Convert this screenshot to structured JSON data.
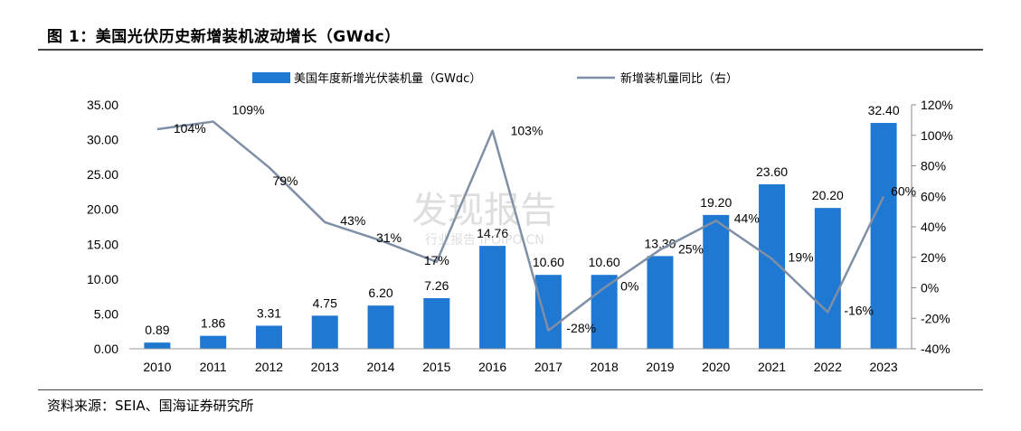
{
  "figure": {
    "title": "图 1：美国光伏历史新增装机波动增长（GWdc）",
    "source": "资料来源：SEIA、国海证券研究所"
  },
  "watermark": {
    "main": "发现报告",
    "sub": "行业报告 IPOIPO.CN"
  },
  "colors": {
    "bar": "#1F78D1",
    "line": "#7F8FA6"
  },
  "chart_data": {
    "type": "bar",
    "categories": [
      "2010",
      "2011",
      "2012",
      "2013",
      "2014",
      "2015",
      "2016",
      "2017",
      "2018",
      "2019",
      "2020",
      "2021",
      "2022",
      "2023"
    ],
    "series": [
      {
        "name": "美国年度新增光伏装机量（GWdc）",
        "type": "bar",
        "axis": "left",
        "values": [
          0.89,
          1.86,
          3.31,
          4.75,
          6.2,
          7.26,
          14.76,
          10.6,
          10.6,
          13.3,
          19.2,
          23.6,
          20.2,
          32.4
        ],
        "labels": [
          "0.89",
          "1.86",
          "3.31",
          "4.75",
          "6.20",
          "7.26",
          "14.76",
          "10.60",
          "10.60",
          "13.30",
          "19.20",
          "23.60",
          "20.20",
          "32.40"
        ]
      },
      {
        "name": "新增装机量同比（右）",
        "type": "line",
        "axis": "right",
        "values": [
          104,
          109,
          79,
          43,
          31,
          17,
          103,
          -28,
          0,
          25,
          44,
          19,
          -16,
          60
        ],
        "labels": [
          "104%",
          "109%",
          "79%",
          "43%",
          "31%",
          "17%",
          "103%",
          "-28%",
          "0%",
          "25%",
          "44%",
          "19%",
          "-16%",
          "60%"
        ]
      }
    ],
    "y_left": {
      "min": 0,
      "max": 35,
      "step": 5,
      "ticks": [
        "0.00",
        "5.00",
        "10.00",
        "15.00",
        "20.00",
        "25.00",
        "30.00",
        "35.00"
      ]
    },
    "y_right": {
      "min": -40,
      "max": 120,
      "step": 20,
      "ticks": [
        "-40%",
        "-20%",
        "0%",
        "20%",
        "40%",
        "60%",
        "80%",
        "100%",
        "120%"
      ]
    },
    "legend_position": "top-center",
    "grid": false
  }
}
